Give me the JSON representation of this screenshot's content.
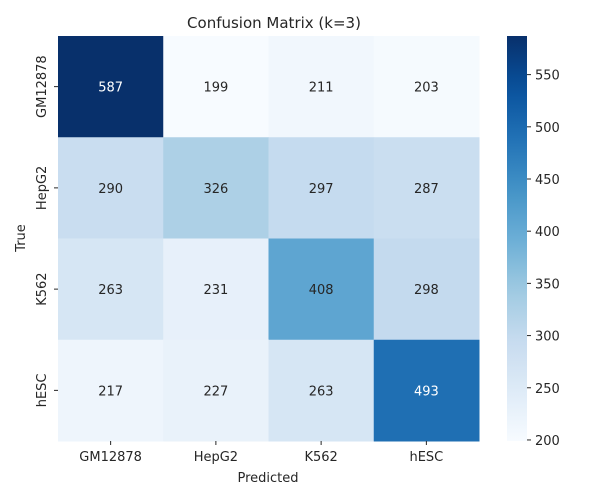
{
  "chart_data": {
    "type": "heatmap",
    "title": "Confusion Matrix (k=3)",
    "xlabel": "Predicted",
    "ylabel": "True",
    "x_categories": [
      "GM12878",
      "HepG2",
      "K562",
      "hESC"
    ],
    "y_categories": [
      "GM12878",
      "HepG2",
      "K562",
      "hESC"
    ],
    "values": [
      [
        587,
        199,
        211,
        203
      ],
      [
        290,
        326,
        297,
        287
      ],
      [
        263,
        231,
        408,
        298
      ],
      [
        217,
        227,
        263,
        493
      ]
    ],
    "colormap": "Blues",
    "color_range": [
      199,
      587
    ],
    "colorbar_ticks": [
      200,
      250,
      300,
      350,
      400,
      450,
      500,
      550
    ],
    "annotations": true
  }
}
